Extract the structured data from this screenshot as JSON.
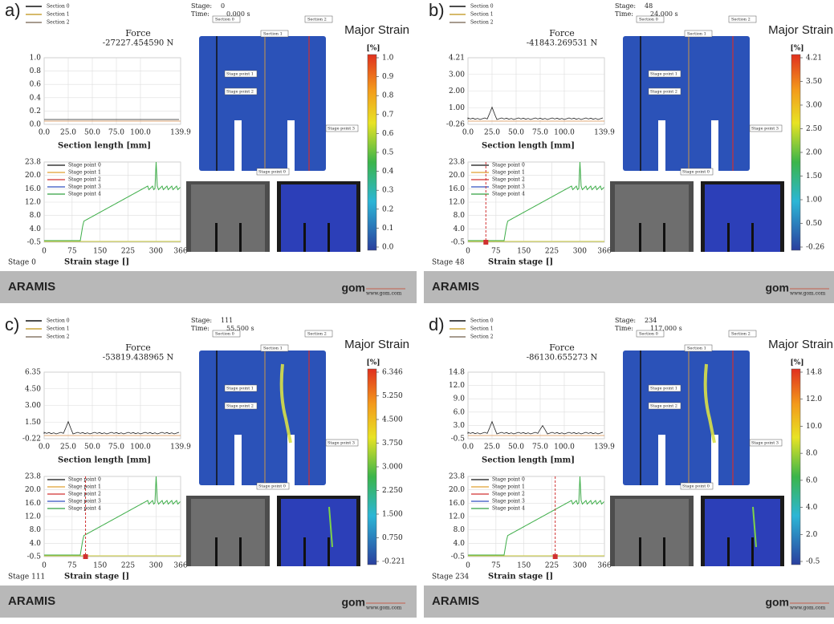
{
  "footer": {
    "brand": "ARAMIS",
    "logo": "gom",
    "url": "www.gom.com"
  },
  "common": {
    "force_label": "Force",
    "stage_label": "Stage:",
    "time_label": "Time:",
    "title": "Major Strain",
    "unit": "[%]",
    "section_legend": [
      "Section 0",
      "Section 1",
      "Section 2"
    ],
    "stage_legend": [
      "Stage point 0",
      "Stage point 1",
      "Stage point 2",
      "Stage point 3",
      "Stage point 4"
    ],
    "section_xticks": [
      "0.0",
      "25.0",
      "50.0",
      "75.0",
      "100.0",
      "139.9"
    ],
    "section_xlabel": "Section length [mm]",
    "strain_yticks": [
      "23.8",
      "20.0",
      "16.0",
      "12.0",
      "8.0",
      "4.0",
      "-0.5"
    ],
    "strain_xticks": [
      "0",
      "75",
      "150",
      "225",
      "300",
      "366"
    ],
    "strain_xlabel": "Strain stage []"
  },
  "panels": [
    {
      "label": "a)",
      "force": "-27227.454590 N",
      "stage": "0",
      "time": "0.000 s",
      "stage_caption": "Stage 0",
      "section_yticks": [
        "1.0",
        "0.8",
        "0.6",
        "0.4",
        "0.2",
        "0.0"
      ],
      "colorbar_ticks": [
        "1.0",
        "0.9",
        "0.8",
        "0.7",
        "0.6",
        "0.5",
        "0.4",
        "0.3",
        "0.2",
        "0.1",
        "0.0"
      ]
    },
    {
      "label": "b)",
      "force": "-41843.269531 N",
      "stage": "48",
      "time": "24.000 s",
      "stage_caption": "Stage 48",
      "section_yticks": [
        "4.21",
        "3.00",
        "2.00",
        "1.00",
        "-0.26"
      ],
      "colorbar_ticks": [
        "4.21",
        "3.50",
        "3.00",
        "2.50",
        "2.00",
        "1.50",
        "1.00",
        "0.50",
        "-0.26"
      ]
    },
    {
      "label": "c)",
      "force": "-53819.438965 N",
      "stage": "111",
      "time": "55.500 s",
      "stage_caption": "Stage 111",
      "section_yticks": [
        "6.35",
        "4.50",
        "3.00",
        "1.50",
        "-0.22"
      ],
      "colorbar_ticks": [
        "6.346",
        "5.250",
        "4.500",
        "3.750",
        "3.000",
        "2.250",
        "1.500",
        "0.750",
        "-0.221"
      ]
    },
    {
      "label": "d)",
      "force": "-86130.655273 N",
      "stage": "234",
      "time": "117.000 s",
      "stage_caption": "Stage 234",
      "section_yticks": [
        "14.8",
        "12.0",
        "9.0",
        "6.0",
        "3.0",
        "-0.5"
      ],
      "colorbar_ticks": [
        "14.8",
        "12.0",
        "10.0",
        "8.0",
        "6.0",
        "4.0",
        "2.0",
        "-0.5"
      ]
    }
  ]
}
